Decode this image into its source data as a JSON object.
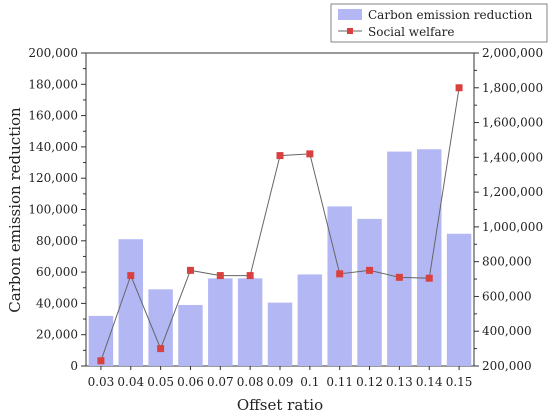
{
  "chart_data": {
    "type": "bar",
    "categories": [
      "0.03",
      "0.04",
      "0.05",
      "0.06",
      "0.07",
      "0.08",
      "0.09",
      "0.1",
      "0.11",
      "0.12",
      "0.13",
      "0.14",
      "0.15"
    ],
    "series": [
      {
        "name": "Carbon emission reduction",
        "type": "bar",
        "axis": "left",
        "color": "#b3b8f5",
        "values": [
          32000,
          81000,
          49000,
          39000,
          56000,
          56000,
          40500,
          58500,
          102000,
          94000,
          137000,
          138500,
          84500
        ]
      },
      {
        "name": "Social welfare",
        "type": "line",
        "axis": "right",
        "color": "#d94040",
        "line_color": "#666666",
        "values": [
          230000,
          720000,
          300000,
          750000,
          720000,
          720000,
          1410000,
          1420000,
          730000,
          750000,
          710000,
          705000,
          1800000
        ]
      }
    ],
    "xlabel": "Offset ratio",
    "ylabel": "Carbon emission reduction",
    "y_ticks": [
      "0",
      "20,000",
      "40,000",
      "60,000",
      "80,000",
      "100,000",
      "120,000",
      "140,000",
      "160,000",
      "180,000",
      "200,000"
    ],
    "y2_ticks": [
      "200,000",
      "400,000",
      "600,000",
      "800,000",
      "1,000,000",
      "1,200,000",
      "1,400,000",
      "1,600,000",
      "1,800,000",
      "2,000,000"
    ],
    "ylim": [
      0,
      200000
    ],
    "y2lim": [
      200000,
      2000000
    ],
    "grid": false,
    "legend_position": "top-right"
  }
}
